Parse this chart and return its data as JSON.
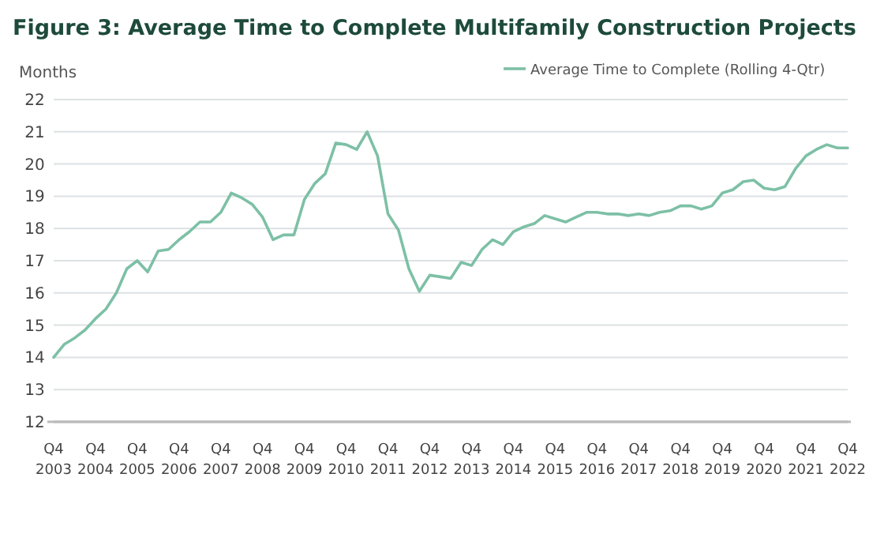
{
  "chart_data": {
    "type": "line",
    "title": "Figure 3: Average Time to Complete Multifamily Construction Projects",
    "ylabel": "Months",
    "categories": [
      "Q4 2003",
      null,
      null,
      null,
      "Q4 2004",
      null,
      null,
      null,
      "Q4 2005",
      null,
      null,
      null,
      "Q4 2006",
      null,
      null,
      null,
      "Q4 2007",
      null,
      null,
      null,
      "Q4 2008",
      null,
      null,
      null,
      "Q4 2009",
      null,
      null,
      null,
      "Q4 2010",
      null,
      null,
      null,
      "Q4 2011",
      null,
      null,
      null,
      "Q4 2012",
      null,
      null,
      null,
      "Q4 2013",
      null,
      null,
      null,
      "Q4 2014",
      null,
      null,
      null,
      "Q4 2015",
      null,
      null,
      null,
      "Q4 2016",
      null,
      null,
      null,
      "Q4 2017",
      null,
      null,
      null,
      "Q4 2018",
      null,
      null,
      null,
      "Q4 2019",
      null,
      null,
      null,
      "Q4 2020",
      null,
      null,
      null,
      "Q4 2021",
      null,
      null,
      null,
      "Q4 2022"
    ],
    "series": [
      {
        "name": "Average Time to Complete (Rolling 4-Qtr)",
        "color": "#7dc0a6",
        "values": [
          14.0,
          14.4,
          14.6,
          14.85,
          15.2,
          15.5,
          16.0,
          16.75,
          17.0,
          16.65,
          17.3,
          17.35,
          17.65,
          17.9,
          18.2,
          18.2,
          18.5,
          19.1,
          18.95,
          18.75,
          18.35,
          17.65,
          17.8,
          17.8,
          18.9,
          19.4,
          19.7,
          20.65,
          20.6,
          20.45,
          21.0,
          20.25,
          18.45,
          17.95,
          16.75,
          16.05,
          16.55,
          16.5,
          16.45,
          16.95,
          16.85,
          17.35,
          17.65,
          17.5,
          17.9,
          18.05,
          18.15,
          18.4,
          18.3,
          18.2,
          18.35,
          18.5,
          18.5,
          18.45,
          18.45,
          18.4,
          18.45,
          18.4,
          18.5,
          18.55,
          18.7,
          18.7,
          18.6,
          18.7,
          19.1,
          19.2,
          19.45,
          19.5,
          19.25,
          19.2,
          19.3,
          19.85,
          20.25,
          20.45,
          20.6,
          20.5,
          20.5
        ]
      }
    ],
    "ylim": [
      12,
      22
    ],
    "yticks": [
      12,
      13,
      14,
      15,
      16,
      17,
      18,
      19,
      20,
      21,
      22
    ],
    "grid": "y",
    "legend": "top right",
    "marker": "none",
    "line_style": "solid"
  }
}
